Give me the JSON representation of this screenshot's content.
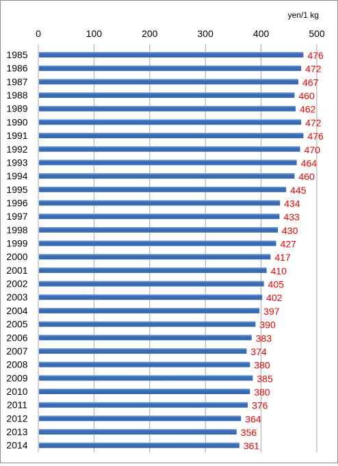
{
  "chart_data": {
    "type": "bar",
    "orientation": "horizontal",
    "unit_label": "yen/1 kg",
    "xlim": [
      0,
      500
    ],
    "x_ticks": [
      0,
      100,
      200,
      300,
      400,
      500
    ],
    "x_tick_labels": [
      "0",
      "100",
      "200",
      "300",
      "400",
      "500"
    ],
    "x_axis_position": "top",
    "grid": "vertical",
    "categories": [
      "1985",
      "1986",
      "1987",
      "1988",
      "1989",
      "1990",
      "1991",
      "1992",
      "1993",
      "1994",
      "1995",
      "1996",
      "1997",
      "1998",
      "1999",
      "2000",
      "2001",
      "2002",
      "2003",
      "2004",
      "2005",
      "2006",
      "2007",
      "2008",
      "2009",
      "2010",
      "2011",
      "2012",
      "2013",
      "2014"
    ],
    "values": [
      476,
      472,
      467,
      460,
      462,
      472,
      476,
      470,
      464,
      460,
      445,
      434,
      433,
      430,
      427,
      417,
      410,
      405,
      402,
      397,
      390,
      383,
      374,
      380,
      385,
      380,
      376,
      364,
      356,
      361
    ],
    "value_labels": [
      "476",
      "472",
      "467",
      "460",
      "462",
      "472",
      "476",
      "470",
      "464",
      "460",
      "445",
      "434",
      "433",
      "430",
      "427",
      "417",
      "410",
      "405",
      "402",
      "397",
      "390",
      "383",
      "374",
      "380",
      "385",
      "380",
      "376",
      "364",
      "356",
      "361"
    ],
    "colors": {
      "bar": "#3a6bb2",
      "bar_highlight": "#7aa2dc",
      "value_label": "#ff0000",
      "grid": "#a6a6a6",
      "text": "#000000"
    }
  }
}
